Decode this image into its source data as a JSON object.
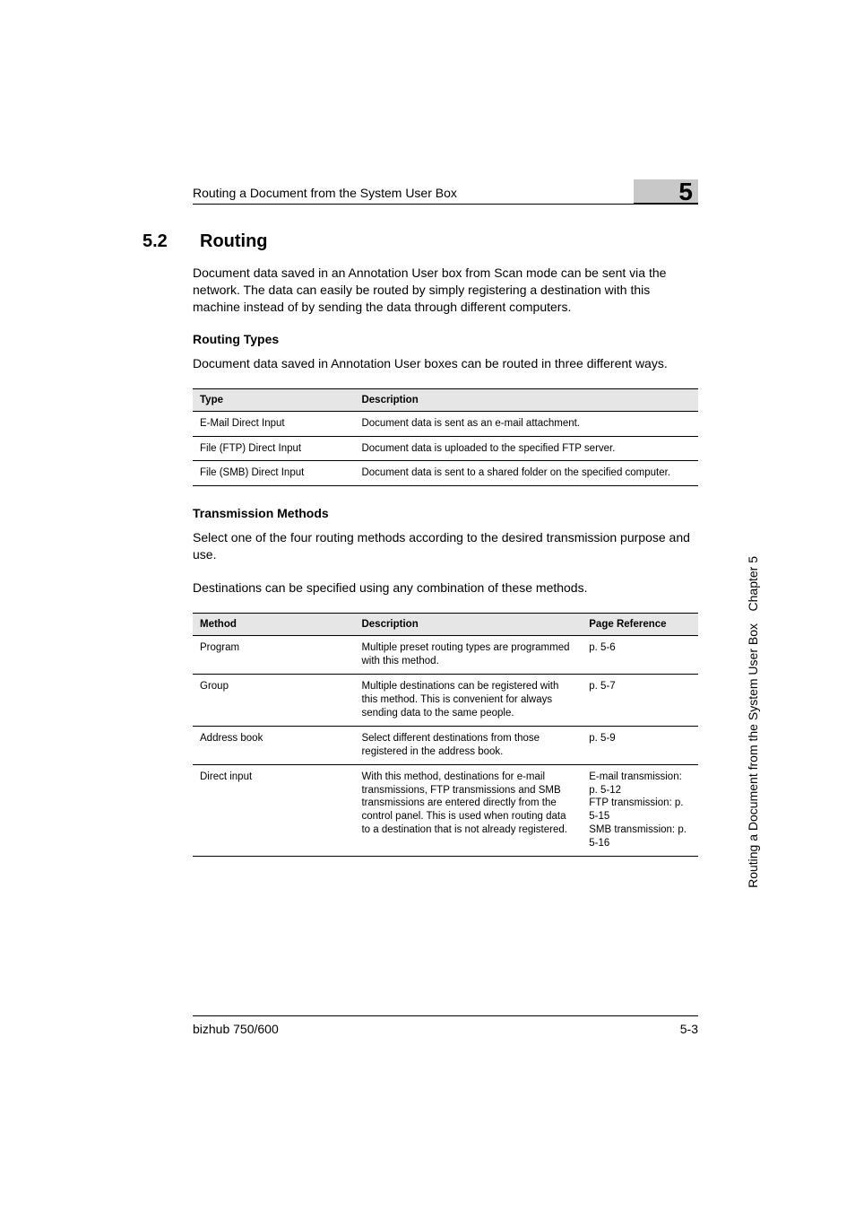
{
  "header": {
    "running_text": "Routing a Document from the System User Box",
    "chapter_number": "5"
  },
  "section": {
    "number": "5.2",
    "title": "Routing",
    "intro": "Document data saved in an Annotation User box from Scan mode can be sent via the network. The data can easily be routed by simply registering a destination with this machine instead of by sending the data through different computers."
  },
  "routing_types": {
    "heading": "Routing Types",
    "intro": "Document data saved in Annotation User boxes can be routed in three different ways.",
    "table": {
      "columns": [
        "Type",
        "Description"
      ],
      "rows": [
        [
          "E-Mail Direct Input",
          "Document data is sent as an e-mail attachment."
        ],
        [
          "File (FTP) Direct Input",
          "Document data is uploaded to the specified FTP server."
        ],
        [
          "File (SMB) Direct Input",
          "Document data is sent to a shared folder on the specified computer."
        ]
      ]
    }
  },
  "transmission_methods": {
    "heading": "Transmission Methods",
    "intro1": "Select one of the four routing methods according to the desired transmission purpose and use.",
    "intro2": "Destinations can be specified using any combination of these methods.",
    "table": {
      "columns": [
        "Method",
        "Description",
        "Page Reference"
      ],
      "rows": [
        [
          "Program",
          "Multiple preset routing types are programmed with this method.",
          "p. 5-6"
        ],
        [
          "Group",
          "Multiple destinations can be registered with this method. This is convenient for always sending data to the same people.",
          "p. 5-7"
        ],
        [
          "Address book",
          "Select different destinations from those registered in the address book.",
          "p. 5-9"
        ],
        [
          "Direct input",
          "With this method, destinations for e-mail transmissions, FTP transmissions and SMB transmissions are entered directly from the control panel. This is used when routing data to a destination that is not already registered.",
          "E-mail transmission: p. 5-12\nFTP transmission: p. 5-15\nSMB transmission: p. 5-16"
        ]
      ]
    }
  },
  "sidebar": {
    "chapter_label": "Chapter 5",
    "long_label": "Routing a Document from the System User Box"
  },
  "footer": {
    "left": "bizhub 750/600",
    "right": "5-3"
  },
  "styling": {
    "page_bg": "#ffffff",
    "text_color": "#000000",
    "table_header_bg": "#e6e6e6",
    "chapter_badge_bg": "#c8c8c8",
    "body_fontsize": 14,
    "table_fontsize": 11.5,
    "heading_fontsize": 20
  }
}
